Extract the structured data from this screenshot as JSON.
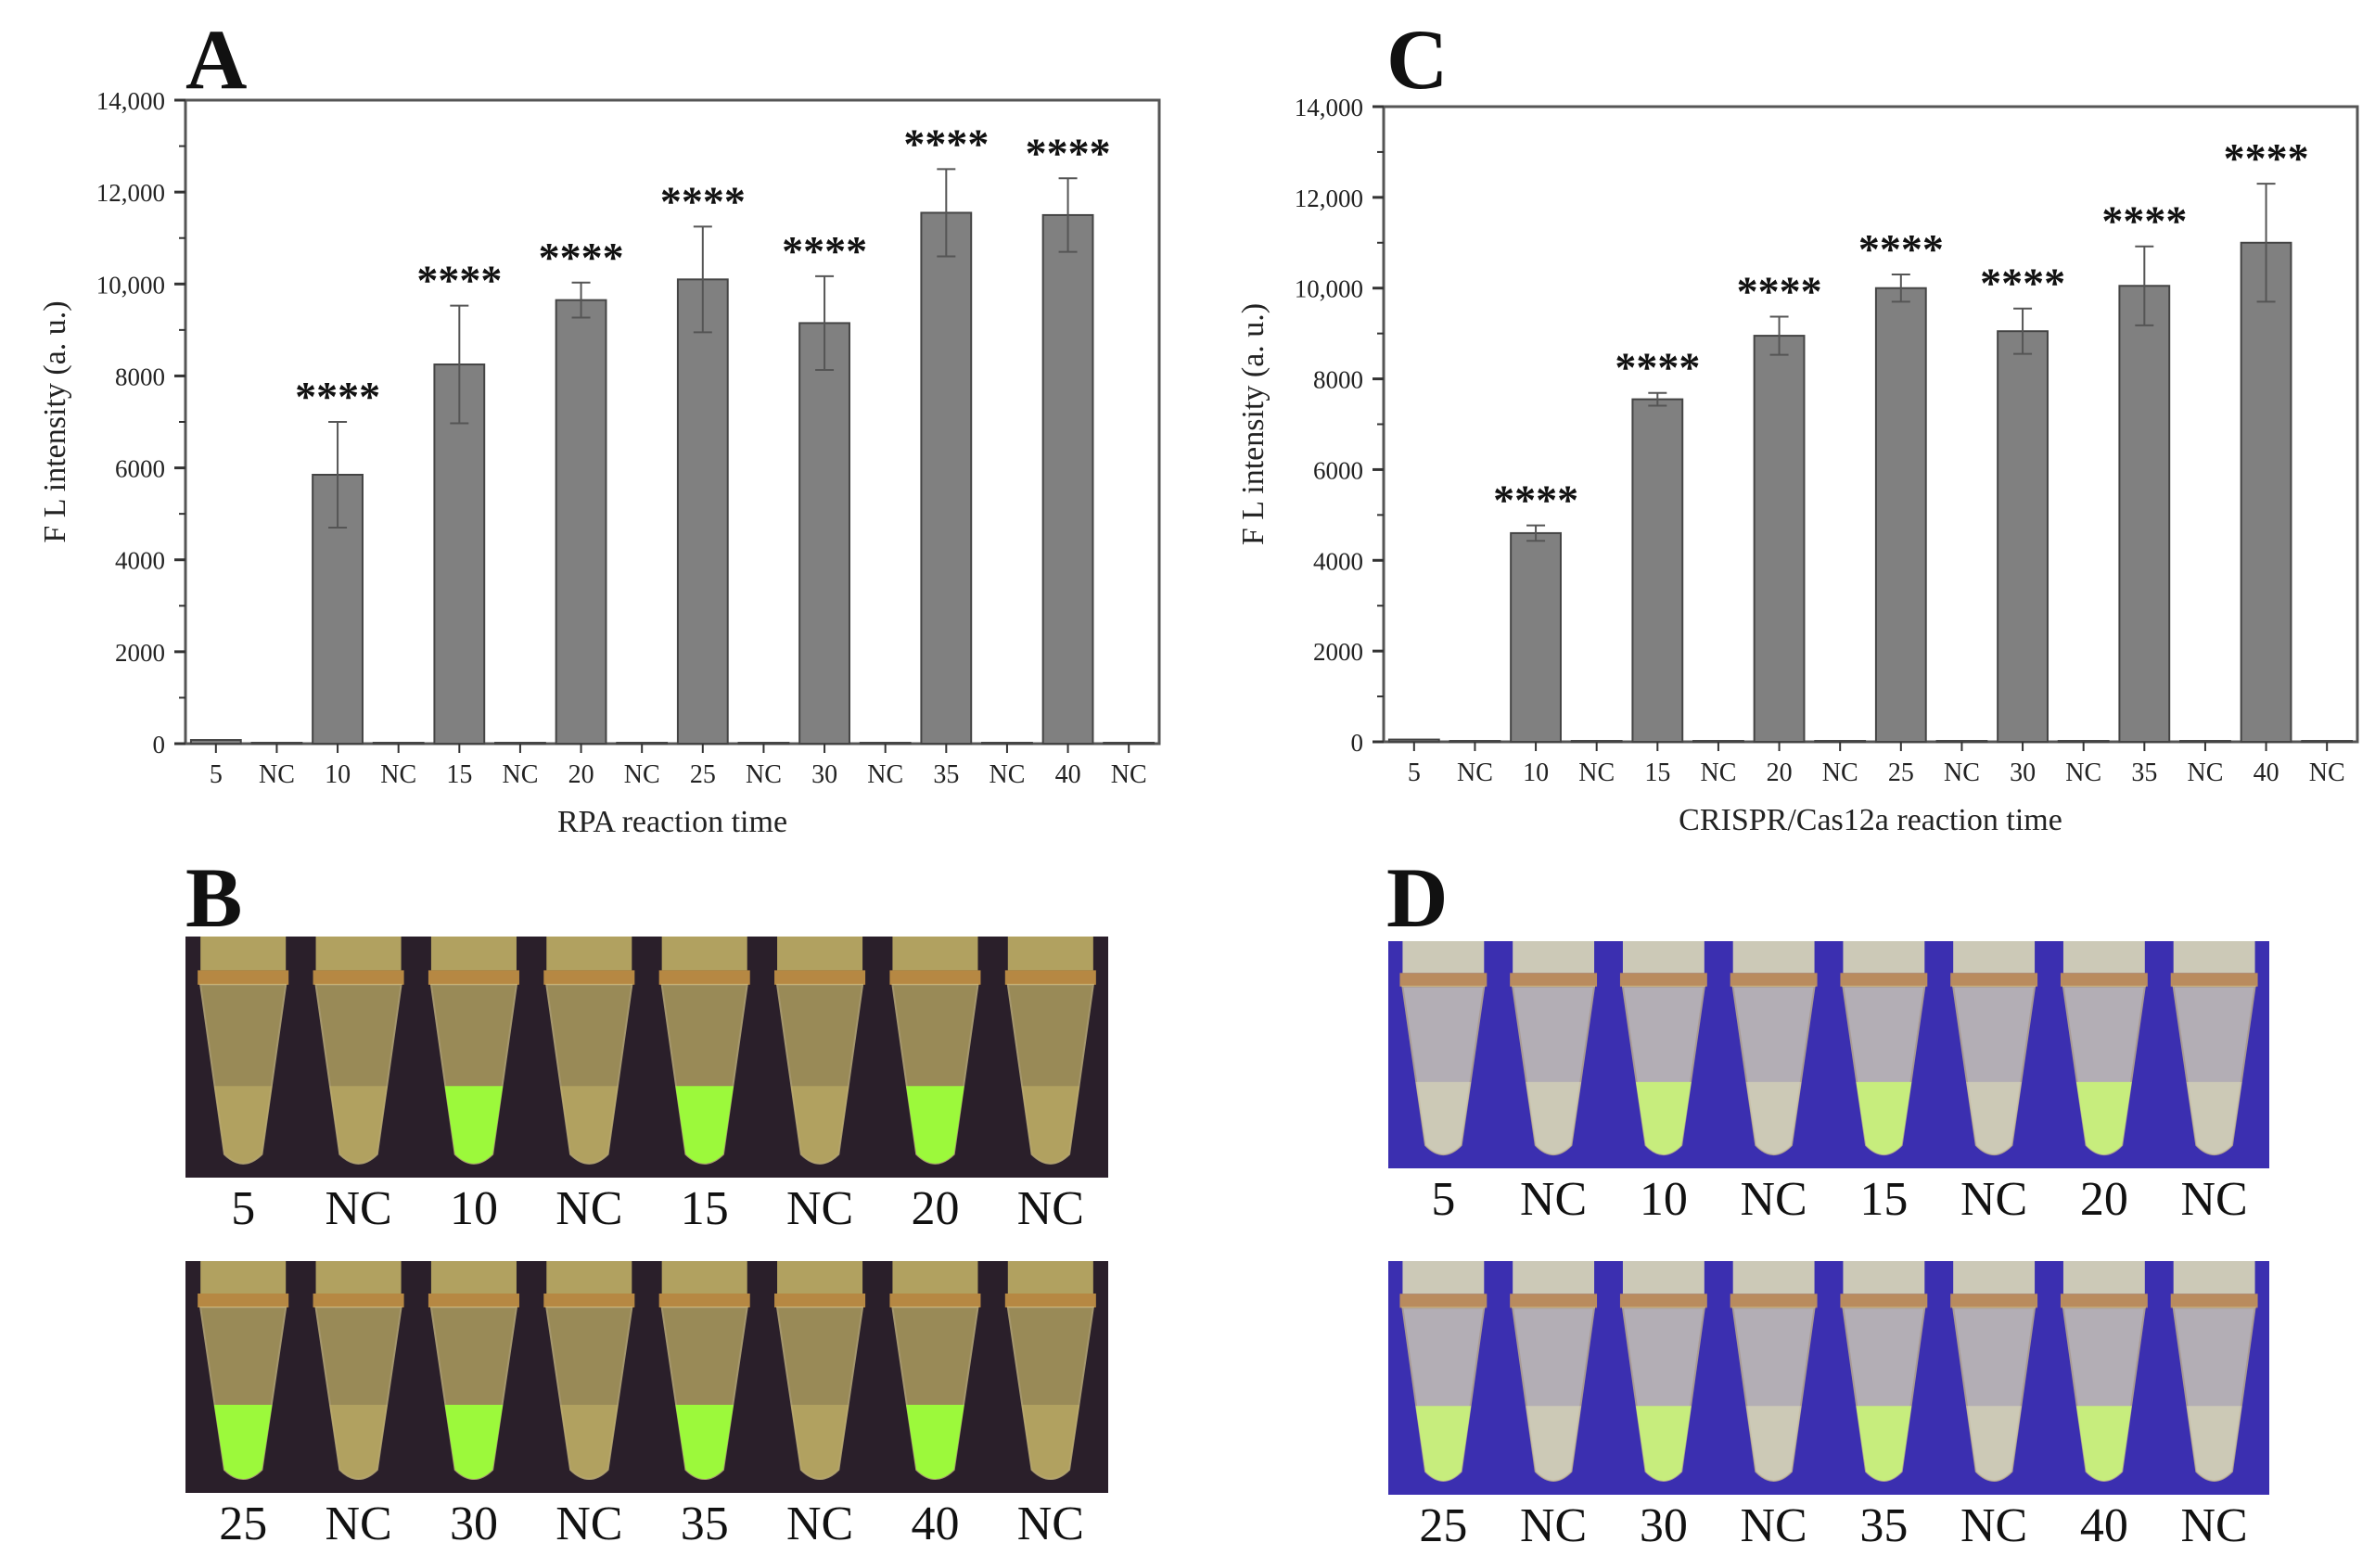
{
  "panels": {
    "A": "A",
    "B": "B",
    "C": "C",
    "D": "D"
  },
  "chart_data": [
    {
      "id": "A",
      "type": "bar",
      "title": "",
      "xlabel": "RPA reaction time",
      "ylabel": "F L intensity (a. u.)",
      "ylim": [
        0,
        14000
      ],
      "yticks": [
        0,
        2000,
        4000,
        6000,
        8000,
        10000,
        12000,
        14000
      ],
      "ytick_labels": [
        "0",
        "2000",
        "4000",
        "6000",
        "8000",
        "10,000",
        "12,000",
        "14,000"
      ],
      "categories": [
        "5",
        "NC",
        "10",
        "NC",
        "15",
        "NC",
        "20",
        "NC",
        "25",
        "NC",
        "30",
        "NC",
        "35",
        "NC",
        "40",
        "NC"
      ],
      "values": [
        80,
        20,
        5850,
        20,
        8250,
        20,
        9650,
        20,
        10100,
        20,
        9150,
        20,
        11550,
        20,
        11500,
        20
      ],
      "errors": [
        0,
        0,
        1150,
        0,
        1280,
        0,
        380,
        0,
        1150,
        0,
        1020,
        0,
        950,
        0,
        800,
        0
      ],
      "significance": [
        "",
        "",
        "****",
        "",
        "****",
        "",
        "****",
        "",
        "****",
        "",
        "****",
        "",
        "****",
        "",
        "****",
        ""
      ],
      "bar_color": "#808080"
    },
    {
      "id": "C",
      "type": "bar",
      "title": "",
      "xlabel": "CRISPR/Cas12a reaction time",
      "ylabel": "F L intensity (a. u.)",
      "ylim": [
        0,
        14000
      ],
      "yticks": [
        0,
        2000,
        4000,
        6000,
        8000,
        10000,
        12000,
        14000
      ],
      "ytick_labels": [
        "0",
        "2000",
        "4000",
        "6000",
        "8000",
        "10,000",
        "12,000",
        "14,000"
      ],
      "categories": [
        "5",
        "NC",
        "10",
        "NC",
        "15",
        "NC",
        "20",
        "NC",
        "25",
        "NC",
        "30",
        "NC",
        "35",
        "NC",
        "40",
        "NC"
      ],
      "values": [
        50,
        20,
        4600,
        20,
        7550,
        20,
        8950,
        20,
        10000,
        20,
        9050,
        20,
        10050,
        20,
        11000,
        20
      ],
      "errors": [
        0,
        0,
        170,
        0,
        140,
        0,
        420,
        0,
        300,
        0,
        500,
        0,
        870,
        0,
        1300,
        0
      ],
      "significance": [
        "",
        "",
        "****",
        "",
        "****",
        "",
        "****",
        "",
        "****",
        "",
        "****",
        "",
        "****",
        "",
        "****",
        ""
      ],
      "bar_color": "#808080"
    }
  ],
  "photos": {
    "B": {
      "rows": [
        {
          "labels": [
            "5",
            "NC",
            "10",
            "NC",
            "15",
            "NC",
            "20",
            "NC"
          ],
          "glow": [
            0,
            0,
            1,
            0,
            1,
            0,
            1,
            0
          ]
        },
        {
          "labels": [
            "25",
            "NC",
            "30",
            "NC",
            "35",
            "NC",
            "40",
            "NC"
          ],
          "glow": [
            1,
            0,
            1,
            0,
            1,
            0,
            1,
            0
          ]
        }
      ],
      "background": "#2a1f2a",
      "tube_color": "#c9b86a",
      "glow_color": "#9cff3a"
    },
    "D": {
      "rows": [
        {
          "labels": [
            "5",
            "NC",
            "10",
            "NC",
            "15",
            "NC",
            "20",
            "NC"
          ],
          "glow": [
            0,
            0,
            1,
            0,
            1,
            0,
            1,
            0
          ]
        },
        {
          "labels": [
            "25",
            "NC",
            "30",
            "NC",
            "35",
            "NC",
            "40",
            "NC"
          ],
          "glow": [
            1,
            0,
            1,
            0,
            1,
            0,
            1,
            0
          ]
        }
      ],
      "background": "#3b2fb0",
      "tube_color": "#e6e4b8",
      "glow_color": "#c8f07a"
    }
  }
}
